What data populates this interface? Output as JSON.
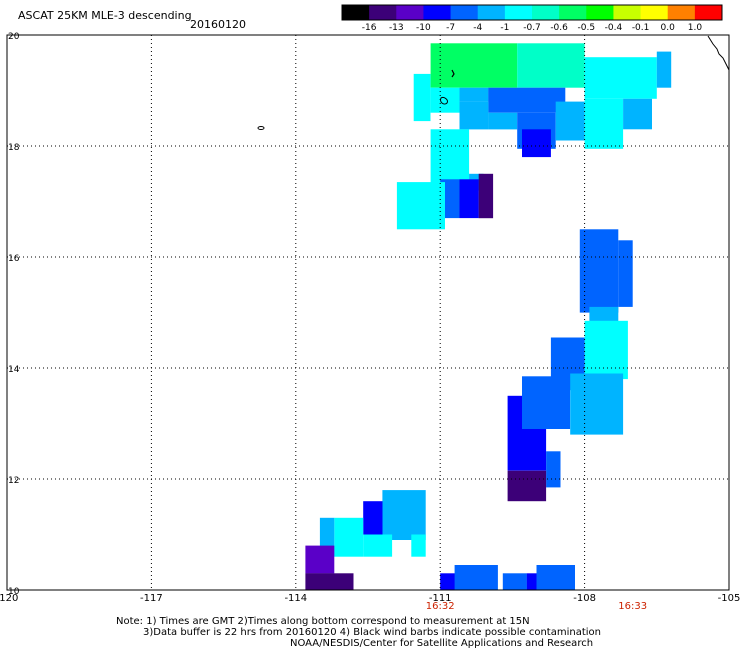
{
  "header": {
    "title": "ASCAT 25KM MLE-3 descending",
    "date": "20160120"
  },
  "colorbar": {
    "labels": [
      "-16",
      "-13",
      "-10",
      "-7",
      "-4",
      "-1",
      "-0.7",
      "-0.6",
      "-0.5",
      "-0.4",
      "-0.1",
      "0.0",
      "1.0"
    ],
    "colors": [
      "#000000",
      "#3c0078",
      "#5a00c8",
      "#0000ff",
      "#0064ff",
      "#00b4ff",
      "#00ffff",
      "#00ffc8",
      "#00ff64",
      "#00ff00",
      "#c8ff00",
      "#ffff00",
      "#ff8000",
      "#ff0000"
    ]
  },
  "chart_data": {
    "type": "heatmap",
    "title": "ASCAT 25KM MLE-3 descending",
    "xlim": [
      -120,
      -105
    ],
    "ylim": [
      10,
      20
    ],
    "x_ticks": [
      "-120",
      "-117",
      "-114",
      "-111",
      "-108",
      "-105"
    ],
    "x_tick_values": [
      -120,
      -117,
      -114,
      -111,
      -108,
      -105
    ],
    "y_ticks": [
      "10",
      "12",
      "14",
      "16",
      "18",
      "20"
    ],
    "y_tick_values": [
      10,
      12,
      14,
      16,
      18,
      20
    ],
    "grid": true,
    "colorbar_labels": [
      "-16",
      "-13",
      "-10",
      "-7",
      "-4",
      "-1",
      "-0.7",
      "-0.6",
      "-0.5",
      "-0.4",
      "-0.1",
      "0.0",
      "1.0"
    ],
    "time_labels": [
      {
        "text": "16:32",
        "lon": -111
      },
      {
        "text": "16:33",
        "lon": -107
      }
    ],
    "cells": [
      {
        "lon0": -111.2,
        "lon1": -109.4,
        "lat0": 19.05,
        "lat1": 19.85,
        "bin": 8
      },
      {
        "lon0": -109.4,
        "lon1": -108.0,
        "lat0": 19.05,
        "lat1": 19.85,
        "bin": 7
      },
      {
        "lon0": -108.0,
        "lon1": -106.5,
        "lat0": 18.85,
        "lat1": 19.6,
        "bin": 6
      },
      {
        "lon0": -106.5,
        "lon1": -106.2,
        "lat0": 19.05,
        "lat1": 19.7,
        "bin": 5
      },
      {
        "lon0": -111.55,
        "lon1": -111.2,
        "lat0": 18.45,
        "lat1": 19.3,
        "bin": 6
      },
      {
        "lon0": -111.2,
        "lon1": -110.6,
        "lat0": 18.6,
        "lat1": 19.05,
        "bin": 6
      },
      {
        "lon0": -110.6,
        "lon1": -110.0,
        "lat0": 18.8,
        "lat1": 19.05,
        "bin": 5
      },
      {
        "lon0": -110.0,
        "lon1": -108.4,
        "lat0": 18.6,
        "lat1": 19.05,
        "bin": 4
      },
      {
        "lon0": -110.6,
        "lon1": -110.0,
        "lat0": 18.3,
        "lat1": 18.8,
        "bin": 5
      },
      {
        "lon0": -110.0,
        "lon1": -109.4,
        "lat0": 18.3,
        "lat1": 18.6,
        "bin": 5
      },
      {
        "lon0": -109.4,
        "lon1": -108.6,
        "lat0": 17.95,
        "lat1": 18.6,
        "bin": 4
      },
      {
        "lon0": -109.3,
        "lon1": -108.7,
        "lat0": 17.8,
        "lat1": 18.3,
        "bin": 3
      },
      {
        "lon0": -108.6,
        "lon1": -108.0,
        "lat0": 18.1,
        "lat1": 18.8,
        "bin": 5
      },
      {
        "lon0": -108.0,
        "lon1": -107.2,
        "lat0": 17.95,
        "lat1": 18.85,
        "bin": 6
      },
      {
        "lon0": -107.2,
        "lon1": -106.6,
        "lat0": 18.3,
        "lat1": 18.85,
        "bin": 5
      },
      {
        "lon0": -111.2,
        "lon1": -110.4,
        "lat0": 17.3,
        "lat1": 18.3,
        "bin": 6
      },
      {
        "lon0": -110.4,
        "lon1": -110.1,
        "lat0": 17.2,
        "lat1": 17.5,
        "bin": 5
      },
      {
        "lon0": -111.0,
        "lon1": -110.6,
        "lat0": 16.7,
        "lat1": 17.4,
        "bin": 4
      },
      {
        "lon0": -110.6,
        "lon1": -110.2,
        "lat0": 16.7,
        "lat1": 17.4,
        "bin": 3
      },
      {
        "lon0": -110.2,
        "lon1": -109.9,
        "lat0": 16.7,
        "lat1": 17.5,
        "bin": 1
      },
      {
        "lon0": -111.9,
        "lon1": -110.9,
        "lat0": 16.5,
        "lat1": 17.35,
        "bin": 6
      },
      {
        "lon0": -108.1,
        "lon1": -107.3,
        "lat0": 15.0,
        "lat1": 16.5,
        "bin": 4
      },
      {
        "lon0": -107.3,
        "lon1": -107.0,
        "lat0": 15.1,
        "lat1": 16.3,
        "bin": 4
      },
      {
        "lon0": -107.9,
        "lon1": -107.3,
        "lat0": 14.8,
        "lat1": 15.1,
        "bin": 5
      },
      {
        "lon0": -108.0,
        "lon1": -107.1,
        "lat0": 13.8,
        "lat1": 14.85,
        "bin": 6
      },
      {
        "lon0": -108.7,
        "lon1": -108.0,
        "lat0": 13.6,
        "lat1": 14.55,
        "bin": 4
      },
      {
        "lon0": -109.3,
        "lon1": -108.3,
        "lat0": 12.9,
        "lat1": 13.85,
        "bin": 4
      },
      {
        "lon0": -108.3,
        "lon1": -107.2,
        "lat0": 12.8,
        "lat1": 13.9,
        "bin": 5
      },
      {
        "lon0": -109.6,
        "lon1": -109.3,
        "lat0": 12.9,
        "lat1": 13.5,
        "bin": 3
      },
      {
        "lon0": -109.6,
        "lon1": -108.8,
        "lat0": 12.15,
        "lat1": 12.9,
        "bin": 3
      },
      {
        "lon0": -108.8,
        "lon1": -108.5,
        "lat0": 11.85,
        "lat1": 12.5,
        "bin": 4
      },
      {
        "lon0": -109.6,
        "lon1": -108.8,
        "lat0": 11.6,
        "lat1": 12.15,
        "bin": 1
      },
      {
        "lon0": -112.2,
        "lon1": -111.3,
        "lat0": 10.9,
        "lat1": 11.8,
        "bin": 5
      },
      {
        "lon0": -112.6,
        "lon1": -112.2,
        "lat0": 11.0,
        "lat1": 11.6,
        "bin": 3
      },
      {
        "lon0": -113.2,
        "lon1": -112.6,
        "lat0": 10.6,
        "lat1": 11.3,
        "bin": 6
      },
      {
        "lon0": -113.5,
        "lon1": -113.2,
        "lat0": 10.6,
        "lat1": 11.3,
        "bin": 5
      },
      {
        "lon0": -113.8,
        "lon1": -113.2,
        "lat0": 10.3,
        "lat1": 10.8,
        "bin": 2
      },
      {
        "lon0": -112.6,
        "lon1": -112.0,
        "lat0": 10.6,
        "lat1": 11.0,
        "bin": 6
      },
      {
        "lon0": -113.8,
        "lon1": -112.8,
        "lat0": 10.0,
        "lat1": 10.3,
        "bin": 1
      },
      {
        "lon0": -111.6,
        "lon1": -111.3,
        "lat0": 10.6,
        "lat1": 11.0,
        "bin": 6
      },
      {
        "lon0": -111.0,
        "lon1": -110.3,
        "lat0": 10.0,
        "lat1": 10.3,
        "bin": 3
      },
      {
        "lon0": -110.7,
        "lon1": -109.8,
        "lat0": 10.0,
        "lat1": 10.45,
        "bin": 4
      },
      {
        "lon0": -109.7,
        "lon1": -109.2,
        "lat0": 10.0,
        "lat1": 10.3,
        "bin": 4
      },
      {
        "lon0": -109.2,
        "lon1": -108.7,
        "lat0": 10.0,
        "lat1": 10.3,
        "bin": 3
      },
      {
        "lon0": -109.0,
        "lon1": -108.2,
        "lat0": 10.0,
        "lat1": 10.45,
        "bin": 4
      }
    ]
  },
  "notes": {
    "line1": "Note: 1) Times are GMT 2)Times along bottom correspond to measurement at 15N",
    "line2": "3)Data buffer is 22 hrs from 20160120 4) Black wind barbs indicate possible contamination",
    "line3": "NOAA/NESDIS/Center for Satellite Applications and Research"
  }
}
